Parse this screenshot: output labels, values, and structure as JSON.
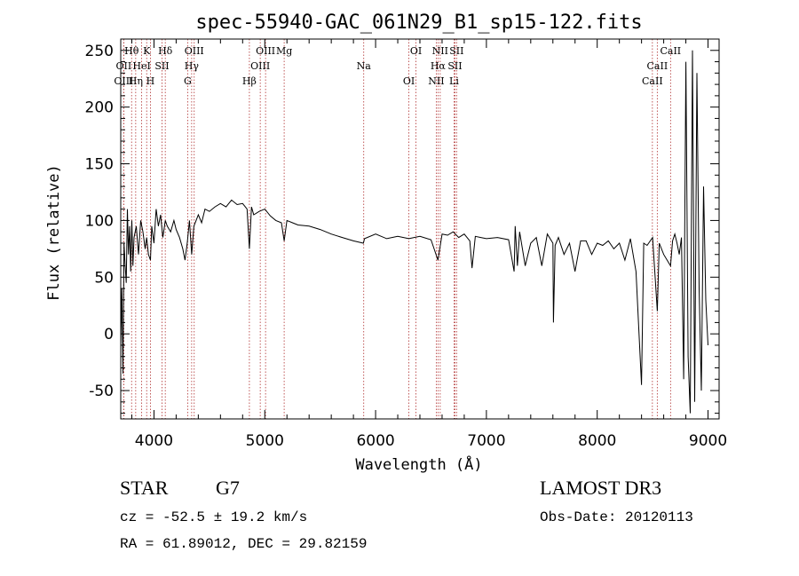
{
  "chart_data": {
    "type": "line",
    "title": "spec-55940-GAC_061N29_B1_sp15-122.fits",
    "xlabel": "Wavelength (Å)",
    "ylabel": "Flux (relative)",
    "xlim": [
      3700,
      9100
    ],
    "ylim": [
      -75,
      260
    ],
    "xticks": [
      4000,
      5000,
      6000,
      7000,
      8000,
      9000
    ],
    "yticks": [
      -50,
      0,
      50,
      100,
      150,
      200,
      250
    ],
    "grid": false,
    "series": [
      {
        "x": [
          3700,
          3710,
          3720,
          3730,
          3740,
          3750,
          3760,
          3770,
          3780,
          3790,
          3800,
          3810,
          3820,
          3840,
          3860,
          3880,
          3900,
          3920,
          3934,
          3950,
          3968,
          3980,
          4000,
          4020,
          4040,
          4060,
          4080,
          4102,
          4120,
          4150,
          4180,
          4200,
          4230,
          4260,
          4280,
          4300,
          4320,
          4340,
          4360,
          4380,
          4400,
          4430,
          4460,
          4500,
          4550,
          4600,
          4650,
          4700,
          4750,
          4800,
          4840,
          4861,
          4880,
          4900,
          4950,
          5000,
          5050,
          5100,
          5150,
          5175,
          5200,
          5250,
          5300,
          5400,
          5500,
          5600,
          5700,
          5800,
          5890,
          5900,
          6000,
          6100,
          6200,
          6300,
          6400,
          6500,
          6563,
          6600,
          6650,
          6700,
          6750,
          6800,
          6850,
          6870,
          6900,
          6950,
          7000,
          7100,
          7200,
          7250,
          7260,
          7280,
          7300,
          7350,
          7400,
          7450,
          7500,
          7550,
          7600,
          7605,
          7620,
          7650,
          7700,
          7750,
          7800,
          7850,
          7900,
          7950,
          8000,
          8050,
          8100,
          8150,
          8200,
          8250,
          8300,
          8350,
          8400,
          8420,
          8450,
          8500,
          8542,
          8560,
          8600,
          8662,
          8680,
          8700,
          8720,
          8740,
          8760,
          8780,
          8800,
          8820,
          8840,
          8860,
          8880,
          8900,
          8920,
          8940,
          8960,
          8980,
          9000
        ],
        "y": [
          -10,
          40,
          -35,
          80,
          60,
          45,
          110,
          70,
          95,
          55,
          100,
          60,
          85,
          95,
          70,
          100,
          90,
          75,
          85,
          70,
          65,
          95,
          80,
          110,
          95,
          105,
          85,
          100,
          95,
          90,
          100,
          92,
          85,
          75,
          65,
          80,
          100,
          70,
          95,
          100,
          105,
          98,
          110,
          108,
          112,
          115,
          112,
          118,
          114,
          115,
          110,
          75,
          112,
          105,
          108,
          110,
          104,
          100,
          98,
          82,
          100,
          98,
          96,
          95,
          92,
          88,
          85,
          82,
          80,
          84,
          88,
          84,
          86,
          84,
          86,
          83,
          65,
          88,
          87,
          90,
          85,
          88,
          82,
          58,
          86,
          85,
          84,
          85,
          83,
          55,
          95,
          60,
          90,
          60,
          80,
          85,
          60,
          88,
          80,
          10,
          78,
          85,
          70,
          80,
          55,
          82,
          82,
          70,
          80,
          78,
          82,
          75,
          80,
          65,
          84,
          55,
          -45,
          80,
          78,
          85,
          20,
          80,
          70,
          60,
          82,
          88,
          80,
          70,
          85,
          -40,
          240,
          -20,
          -70,
          250,
          -60,
          230,
          40,
          -50,
          130,
          30,
          -10
        ]
      }
    ],
    "spectral_lines": [
      {
        "label": "Hθ",
        "x": 3798
      },
      {
        "label": "OII",
        "x": 3727
      },
      {
        "label": "OIII",
        "x": 3727
      },
      {
        "label": "K",
        "x": 3934
      },
      {
        "label": "HeI",
        "x": 3889
      },
      {
        "label": "Hη",
        "x": 3835
      },
      {
        "label": "Hδ",
        "x": 4102
      },
      {
        "label": "SII",
        "x": 4072
      },
      {
        "label": "H",
        "x": 3968
      },
      {
        "label": "OIII",
        "x": 4363
      },
      {
        "label": "Hγ",
        "x": 4340
      },
      {
        "label": "G",
        "x": 4304
      },
      {
        "label": "OIII",
        "x": 5007
      },
      {
        "label": "OIII",
        "x": 4959
      },
      {
        "label": "Hβ",
        "x": 4861
      },
      {
        "label": "Mg",
        "x": 5175
      },
      {
        "label": "Na",
        "x": 5893
      },
      {
        "label": "OI",
        "x": 6300
      },
      {
        "label": "OI",
        "x": 6364
      },
      {
        "label": "Hα",
        "x": 6563
      },
      {
        "label": "NII",
        "x": 6548
      },
      {
        "label": "NII",
        "x": 6583
      },
      {
        "label": "SII",
        "x": 6716
      },
      {
        "label": "Li",
        "x": 6708
      },
      {
        "label": "SII",
        "x": 6731
      },
      {
        "label": "CaII",
        "x": 8542
      },
      {
        "label": "CaII",
        "x": 8498
      },
      {
        "label": "CaII",
        "x": 8662
      }
    ]
  },
  "info": {
    "class": "STAR",
    "subclass": "G7",
    "redshift": "cz = -52.5 ± 19.2 km/s",
    "coords": "RA =  61.89012, DEC =  29.82159",
    "survey": "LAMOST DR3",
    "obs_date": "Obs-Date: 20120113"
  },
  "colors": {
    "spectrum": "#000000",
    "line_marker": "#b03030",
    "axes": "#000000"
  }
}
